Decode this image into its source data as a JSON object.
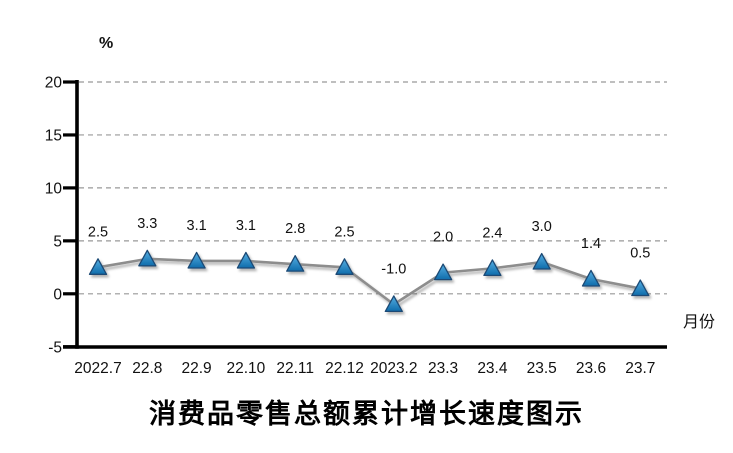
{
  "chart_data": {
    "type": "line",
    "categories": [
      "2022.7",
      "22.8",
      "22.9",
      "22.10",
      "22.11",
      "22.12",
      "2023.2",
      "23.3",
      "23.4",
      "23.5",
      "23.6",
      "23.7"
    ],
    "values": [
      2.5,
      3.3,
      3.1,
      3.1,
      2.8,
      2.5,
      -1.0,
      2.0,
      2.4,
      3.0,
      1.4,
      0.5
    ],
    "value_labels": [
      "2.5",
      "3.3",
      "3.1",
      "3.1",
      "2.8",
      "2.5",
      "-1.0",
      "2.0",
      "2.4",
      "3.0",
      "1.4",
      "0.5"
    ],
    "title": "消费品零售总额累计增长速度图示",
    "ylabel": "%",
    "xlabel": "月份",
    "ylim": [
      -5,
      20
    ],
    "yticks": [
      20,
      15,
      10,
      5,
      0,
      -5
    ],
    "grid": true,
    "legend": false,
    "marker": "triangle",
    "colors": {
      "marker_fill_top": "#55aee2",
      "marker_fill_bottom": "#0f6cab",
      "marker_stroke": "#1b4a74",
      "line": "#8d8d8d",
      "grid": "#999999",
      "axis": "#000000",
      "text": "#111111"
    }
  }
}
